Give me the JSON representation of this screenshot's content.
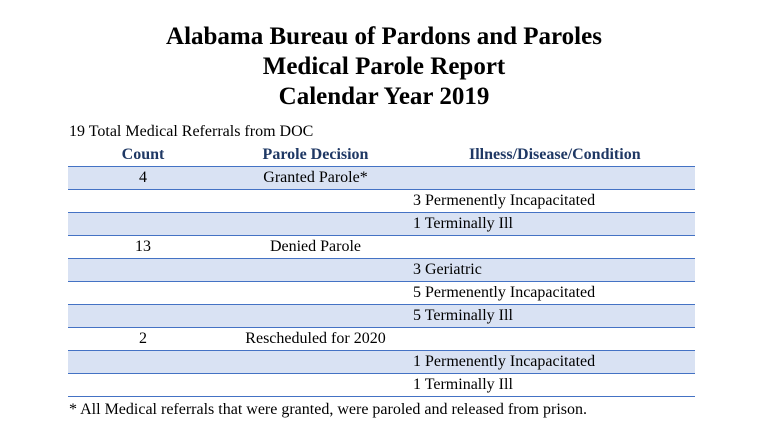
{
  "title": {
    "line1": "Alabama Bureau of Pardons and Paroles",
    "line2": "Medical Parole Report",
    "line3": "Calendar Year 2019"
  },
  "subheading": "19 Total Medical Referrals from DOC",
  "table": {
    "headers": {
      "count": "Count",
      "decision": "Parole Decision",
      "illness": "Illness/Disease/Condition"
    },
    "rows": [
      {
        "count": "4",
        "decision": "Granted Parole*",
        "illness": ""
      },
      {
        "count": "",
        "decision": "",
        "illness": "3 Permenently Incapacitated"
      },
      {
        "count": "",
        "decision": "",
        "illness": "1 Terminally Ill"
      },
      {
        "count": "13",
        "decision": "Denied Parole",
        "illness": ""
      },
      {
        "count": "",
        "decision": "",
        "illness": "3 Geriatric"
      },
      {
        "count": "",
        "decision": "",
        "illness": "5 Permenently Incapacitated"
      },
      {
        "count": "",
        "decision": "",
        "illness": "5 Terminally Ill"
      },
      {
        "count": "2",
        "decision": "Rescheduled for 2020",
        "illness": ""
      },
      {
        "count": "",
        "decision": "",
        "illness": "1 Permenently Incapacitated"
      },
      {
        "count": "",
        "decision": "",
        "illness": "1 Terminally Ill"
      }
    ]
  },
  "footnote": "* All Medical referrals that were granted, were paroled and released from prison.",
  "colors": {
    "header_text": "#1f3864",
    "row_shade": "#d9e2f3",
    "rule": "#4472c4"
  }
}
